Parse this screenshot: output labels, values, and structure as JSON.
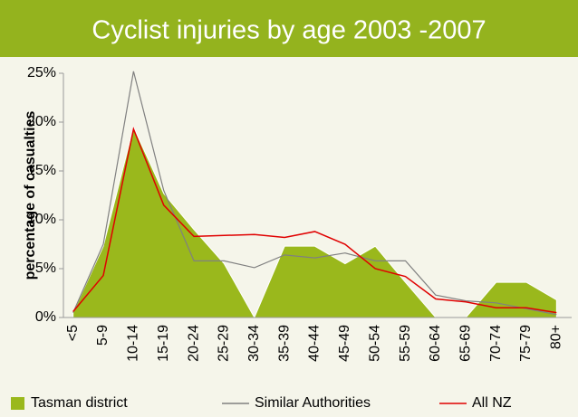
{
  "chart_data": {
    "type": "line",
    "title": "Cyclist injuries by age 2003 -2007",
    "y_label": "percentage of  casualties",
    "categories": [
      "<5",
      "5-9",
      "10-14",
      "15-19",
      "20-24",
      "25-29",
      "30-34",
      "35-39",
      "40-44",
      "45-49",
      "50-54",
      "55-59",
      "60-64",
      "65-69",
      "70-74",
      "75-79",
      "80+"
    ],
    "series": [
      {
        "name": "Tasman district",
        "type": "area",
        "color": "#9ab81c",
        "values": [
          0.5,
          7.3,
          19.5,
          12.7,
          9.0,
          5.5,
          0,
          7.3,
          7.3,
          5.5,
          7.3,
          3.6,
          0,
          0,
          3.6,
          3.6,
          1.8
        ]
      },
      {
        "name": "Similar Authorities",
        "type": "line",
        "color": "#808080",
        "values": [
          0.5,
          7.5,
          25.2,
          13.0,
          5.8,
          5.8,
          5.1,
          6.4,
          6.1,
          6.6,
          5.8,
          5.8,
          2.3,
          1.7,
          1.5,
          0.9,
          0.3
        ]
      },
      {
        "name": "All NZ",
        "type": "line",
        "color": "#e00000",
        "values": [
          0.6,
          4.3,
          19.3,
          11.5,
          8.3,
          8.4,
          8.5,
          8.2,
          8.8,
          7.5,
          5.0,
          4.2,
          1.9,
          1.6,
          1.0,
          1.0,
          0.5
        ]
      }
    ],
    "ylim": [
      0,
      25
    ],
    "yticks": [
      {
        "value": 0,
        "label": "0%"
      },
      {
        "value": 5,
        "label": "5%"
      },
      {
        "value": 10,
        "label": "10%"
      },
      {
        "value": 15,
        "label": "15%"
      },
      {
        "value": 20,
        "label": "20%"
      },
      {
        "value": 25,
        "label": "25%"
      }
    ],
    "legend": "bottom"
  }
}
